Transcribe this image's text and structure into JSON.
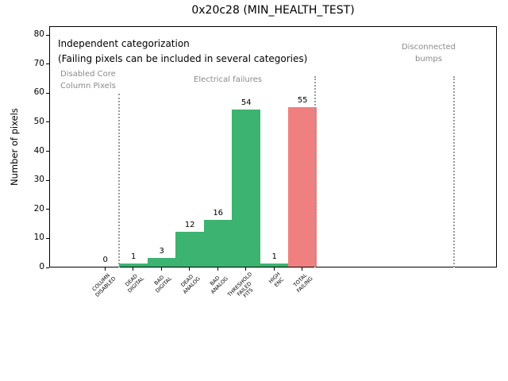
{
  "title": "0x20c28 (MIN_HEALTH_TEST)",
  "ylabel": "Number of pixels",
  "annotation": {
    "line1": "Independent categorization",
    "line2": "(Failing pixels can be included in several categories)"
  },
  "sections": [
    {
      "name": "disabled-core-column-pixels",
      "label_lines": [
        "Disabled Core",
        "Column Pixels"
      ]
    },
    {
      "name": "electrical-failures",
      "label_lines": [
        "Electrical failures"
      ]
    },
    {
      "name": "disconnected-bumps",
      "label_lines": [
        "Disconnected",
        "bumps"
      ]
    }
  ],
  "chart_data": {
    "type": "bar",
    "title": "0x20c28 (MIN_HEALTH_TEST)",
    "xlabel": "",
    "ylabel": "Number of pixels",
    "ylim": [
      0,
      83
    ],
    "yticks": [
      0,
      10,
      20,
      30,
      40,
      50,
      60,
      70,
      80
    ],
    "grid": false,
    "legend": null,
    "categories": [
      [
        "COLUMN",
        "DISABLED"
      ],
      [
        "DEAD",
        "DIGITAL"
      ],
      [
        "BAD",
        "DIGITAL"
      ],
      [
        "DEAD",
        "ANALOG"
      ],
      [
        "BAD",
        "ANALOG"
      ],
      [
        "THRESHOLD",
        "FAILED",
        "FITS"
      ],
      [
        "HIGH",
        "ENC"
      ],
      [
        "TOTAL",
        "FAILING"
      ]
    ],
    "values": [
      0,
      1,
      3,
      12,
      16,
      54,
      1,
      55
    ],
    "bar_colors": [
      "#3cb371",
      "#3cb371",
      "#3cb371",
      "#3cb371",
      "#3cb371",
      "#3cb371",
      "#3cb371",
      "#f08080"
    ],
    "value_labels": [
      "0",
      "1",
      "3",
      "12",
      "16",
      "54",
      "1",
      "55"
    ],
    "colors": {
      "bar_normal": "#3cb371",
      "bar_total": "#f08080",
      "section_text": "#8a8a8a",
      "dotted_line": "#9a9a9a",
      "axis": "#000000"
    }
  }
}
